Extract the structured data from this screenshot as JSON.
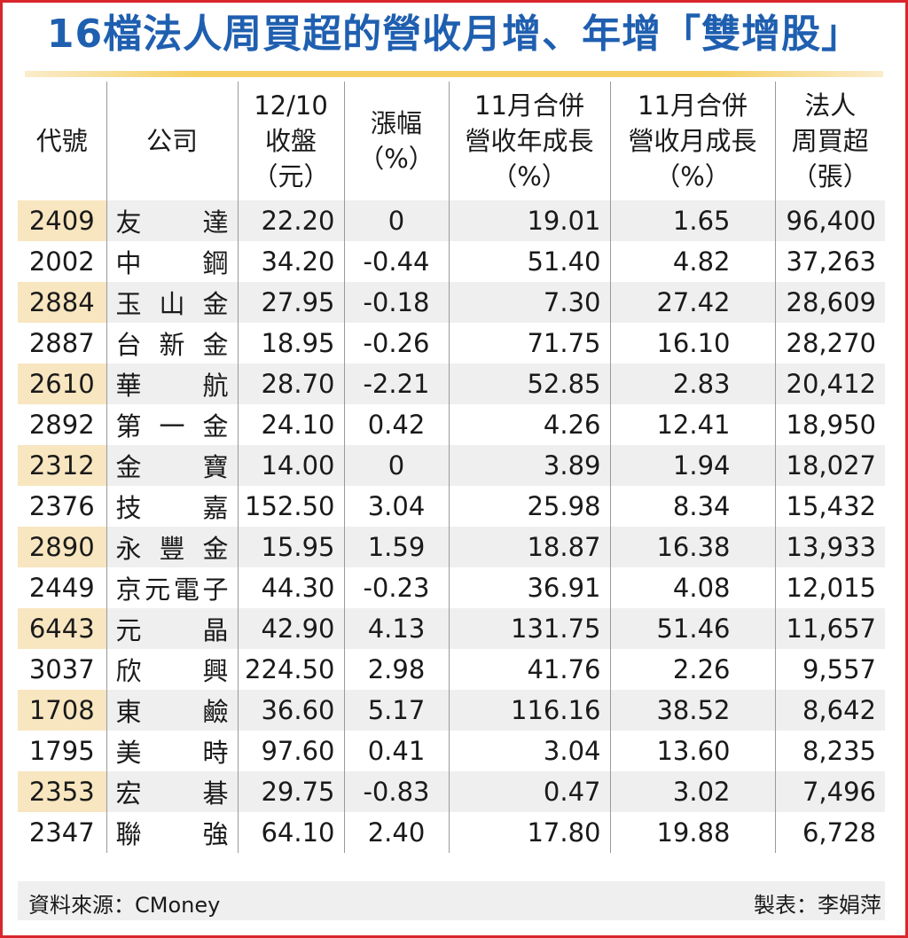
{
  "title": "16檔法人周買超的營收月增、年增「雙增股」",
  "headers": [
    [
      "代號"
    ],
    [
      "公司"
    ],
    [
      "12/10",
      "收盤",
      "（元）"
    ],
    [
      "漲幅",
      "（%）"
    ],
    [
      "11月合併",
      "營收年成長",
      "（%）"
    ],
    [
      "11月合併",
      "營收月成長",
      "（%）"
    ],
    [
      "法人",
      "周買超",
      "（張）"
    ]
  ],
  "rows": [
    {
      "code": "2409",
      "name": [
        "友",
        "達"
      ],
      "close": "22.20",
      "change": "0",
      "yoy": "19.01",
      "mom": "1.65",
      "net_buy": "96,400"
    },
    {
      "code": "2002",
      "name": [
        "中",
        "鋼"
      ],
      "close": "34.20",
      "change": "-0.44",
      "yoy": "51.40",
      "mom": "4.82",
      "net_buy": "37,263"
    },
    {
      "code": "2884",
      "name": [
        "玉",
        "山",
        "金"
      ],
      "close": "27.95",
      "change": "-0.18",
      "yoy": "7.30",
      "mom": "27.42",
      "net_buy": "28,609"
    },
    {
      "code": "2887",
      "name": [
        "台",
        "新",
        "金"
      ],
      "close": "18.95",
      "change": "-0.26",
      "yoy": "71.75",
      "mom": "16.10",
      "net_buy": "28,270"
    },
    {
      "code": "2610",
      "name": [
        "華",
        "航"
      ],
      "close": "28.70",
      "change": "-2.21",
      "yoy": "52.85",
      "mom": "2.83",
      "net_buy": "20,412"
    },
    {
      "code": "2892",
      "name": [
        "第",
        "一",
        "金"
      ],
      "close": "24.10",
      "change": "0.42",
      "yoy": "4.26",
      "mom": "12.41",
      "net_buy": "18,950"
    },
    {
      "code": "2312",
      "name": [
        "金",
        "寶"
      ],
      "close": "14.00",
      "change": "0",
      "yoy": "3.89",
      "mom": "1.94",
      "net_buy": "18,027"
    },
    {
      "code": "2376",
      "name": [
        "技",
        "嘉"
      ],
      "close": "152.50",
      "change": "3.04",
      "yoy": "25.98",
      "mom": "8.34",
      "net_buy": "15,432"
    },
    {
      "code": "2890",
      "name": [
        "永",
        "豐",
        "金"
      ],
      "close": "15.95",
      "change": "1.59",
      "yoy": "18.87",
      "mom": "16.38",
      "net_buy": "13,933"
    },
    {
      "code": "2449",
      "name": [
        "京",
        "元",
        "電",
        "子"
      ],
      "close": "44.30",
      "change": "-0.23",
      "yoy": "36.91",
      "mom": "4.08",
      "net_buy": "12,015"
    },
    {
      "code": "6443",
      "name": [
        "元",
        "晶"
      ],
      "close": "42.90",
      "change": "4.13",
      "yoy": "131.75",
      "mom": "51.46",
      "net_buy": "11,657"
    },
    {
      "code": "3037",
      "name": [
        "欣",
        "興"
      ],
      "close": "224.50",
      "change": "2.98",
      "yoy": "41.76",
      "mom": "2.26",
      "net_buy": "9,557"
    },
    {
      "code": "1708",
      "name": [
        "東",
        "鹼"
      ],
      "close": "36.60",
      "change": "5.17",
      "yoy": "116.16",
      "mom": "38.52",
      "net_buy": "8,642"
    },
    {
      "code": "1795",
      "name": [
        "美",
        "時"
      ],
      "close": "97.60",
      "change": "0.41",
      "yoy": "3.04",
      "mom": "13.60",
      "net_buy": "8,235"
    },
    {
      "code": "2353",
      "name": [
        "宏",
        "碁"
      ],
      "close": "29.75",
      "change": "-0.83",
      "yoy": "0.47",
      "mom": "3.02",
      "net_buy": "7,496"
    },
    {
      "code": "2347",
      "name": [
        "聯",
        "強"
      ],
      "close": "64.10",
      "change": "2.40",
      "yoy": "17.80",
      "mom": "19.88",
      "net_buy": "6,728"
    }
  ],
  "footer": {
    "source": "資料來源：CMoney",
    "maker": "製表：李娟萍"
  },
  "colors": {
    "title": "#1f5fb0",
    "border": "#d8262c",
    "accent_gold": "#f5cf62",
    "code_highlight": "#f8e6c0",
    "row_stripe": "#efefef"
  }
}
